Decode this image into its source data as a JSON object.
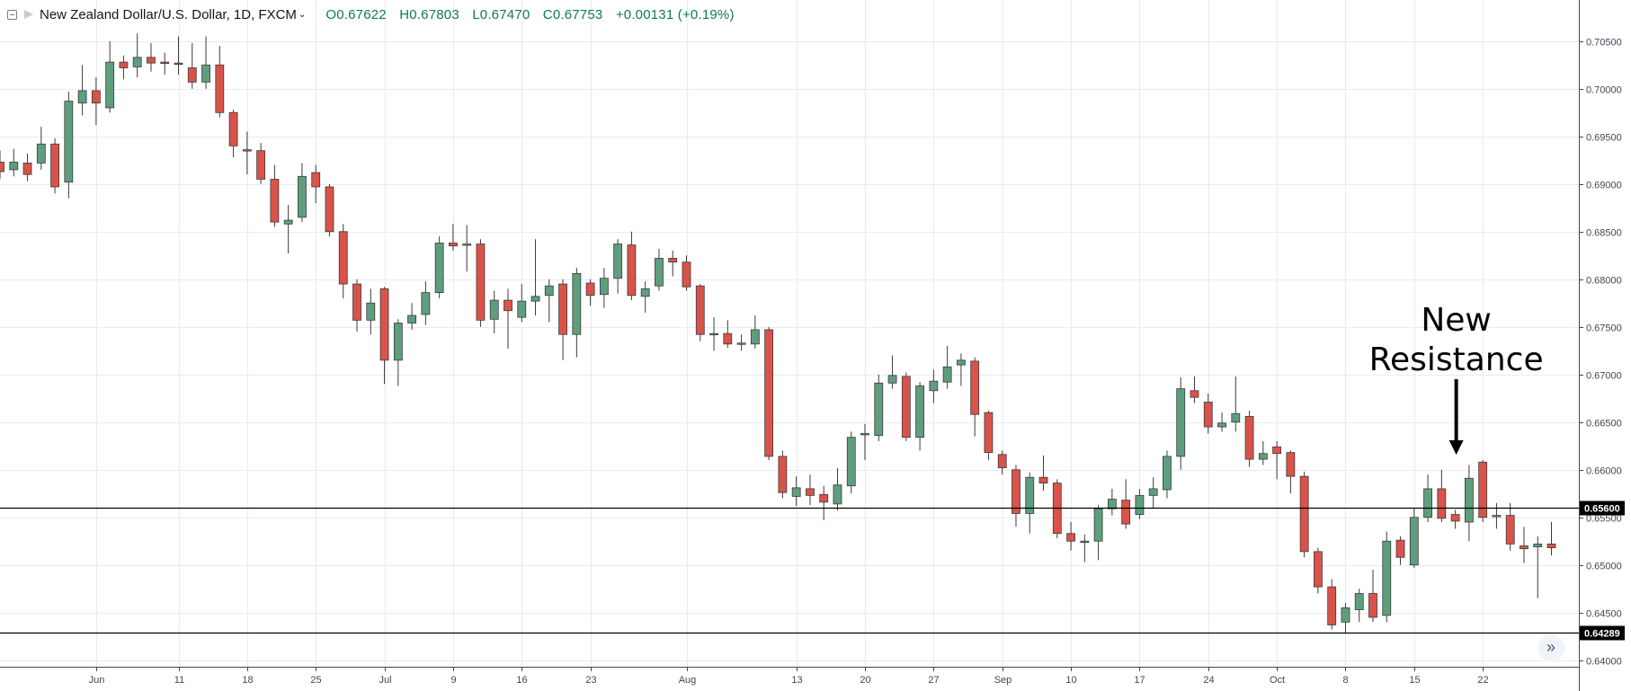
{
  "header": {
    "title": "New Zealand Dollar/U.S. Dollar, 1D, FXCM",
    "open": "O0.67622",
    "high": "H0.67803",
    "low": "L0.67470",
    "close": "C0.67753",
    "change": "+0.00131 (+0.19%)"
  },
  "colors": {
    "up": "#5e9e7e",
    "down": "#d9534a",
    "ohlc": "#0f7b49",
    "line": "#000000"
  },
  "annotation": {
    "line1": "New",
    "line2": "Resistance"
  },
  "scroll_icon": "double-chevron-right-icon",
  "chart_data": {
    "type": "candlestick",
    "ylim": [
      0.6395,
      0.708
    ],
    "y_ticks": [
      "0.70500",
      "0.70000",
      "0.69500",
      "0.69000",
      "0.68500",
      "0.68000",
      "0.67500",
      "0.67000",
      "0.66500",
      "0.66000",
      "0.65500",
      "0.65000",
      "0.64500",
      "0.64000"
    ],
    "x_ticks": [
      {
        "label": "Jun",
        "bar": 7
      },
      {
        "label": "11",
        "bar": 13
      },
      {
        "label": "18",
        "bar": 18
      },
      {
        "label": "25",
        "bar": 23
      },
      {
        "label": "Jul",
        "bar": 28
      },
      {
        "label": "9",
        "bar": 33
      },
      {
        "label": "16",
        "bar": 38
      },
      {
        "label": "23",
        "bar": 43
      },
      {
        "label": "Aug",
        "bar": 50
      },
      {
        "label": "13",
        "bar": 58
      },
      {
        "label": "20",
        "bar": 63
      },
      {
        "label": "27",
        "bar": 68
      },
      {
        "label": "Sep",
        "bar": 73
      },
      {
        "label": "10",
        "bar": 78
      },
      {
        "label": "17",
        "bar": 83
      },
      {
        "label": "24",
        "bar": 88
      },
      {
        "label": "Oct",
        "bar": 93
      },
      {
        "label": "8",
        "bar": 98
      },
      {
        "label": "15",
        "bar": 103
      },
      {
        "label": "22",
        "bar": 108
      }
    ],
    "levels": [
      {
        "value": 0.656,
        "label": "0.65600"
      },
      {
        "value": 0.64289,
        "label": "0.64289"
      }
    ],
    "annotation_bar": 106,
    "candles": [
      [
        0.6923,
        0.6913,
        0.6935,
        0.6905
      ],
      [
        0.6915,
        0.6923,
        0.6937,
        0.6908
      ],
      [
        0.6922,
        0.691,
        0.6932,
        0.6903
      ],
      [
        0.6922,
        0.6942,
        0.696,
        0.6915
      ],
      [
        0.6942,
        0.6897,
        0.6948,
        0.689
      ],
      [
        0.6902,
        0.6987,
        0.6997,
        0.6885
      ],
      [
        0.6985,
        0.6998,
        0.7025,
        0.6972
      ],
      [
        0.6998,
        0.6985,
        0.7012,
        0.6962
      ],
      [
        0.698,
        0.7028,
        0.705,
        0.6975
      ],
      [
        0.7028,
        0.7022,
        0.7035,
        0.701
      ],
      [
        0.7023,
        0.7033,
        0.7058,
        0.7012
      ],
      [
        0.7033,
        0.7027,
        0.7048,
        0.7018
      ],
      [
        0.7028,
        0.7027,
        0.7038,
        0.7015
      ],
      [
        0.7027,
        0.7026,
        0.7055,
        0.7015
      ],
      [
        0.7022,
        0.7007,
        0.7048,
        0.7
      ],
      [
        0.7007,
        0.7025,
        0.7055,
        0.7
      ],
      [
        0.7025,
        0.6975,
        0.7045,
        0.697
      ],
      [
        0.6975,
        0.694,
        0.6978,
        0.6928
      ],
      [
        0.6936,
        0.6935,
        0.6955,
        0.691
      ],
      [
        0.6935,
        0.6905,
        0.6943,
        0.69
      ],
      [
        0.6905,
        0.686,
        0.692,
        0.6855
      ],
      [
        0.6858,
        0.6862,
        0.6878,
        0.6827
      ],
      [
        0.6865,
        0.6908,
        0.6922,
        0.686
      ],
      [
        0.6912,
        0.6897,
        0.692,
        0.688
      ],
      [
        0.6897,
        0.685,
        0.69,
        0.6845
      ],
      [
        0.685,
        0.6795,
        0.6858,
        0.678
      ],
      [
        0.6795,
        0.6757,
        0.68,
        0.6745
      ],
      [
        0.6757,
        0.6775,
        0.679,
        0.6742
      ],
      [
        0.679,
        0.6715,
        0.6792,
        0.669
      ],
      [
        0.6715,
        0.6754,
        0.6758,
        0.6688
      ],
      [
        0.6754,
        0.6762,
        0.6775,
        0.6747
      ],
      [
        0.6763,
        0.6786,
        0.6798,
        0.6752
      ],
      [
        0.6786,
        0.6838,
        0.6845,
        0.678
      ],
      [
        0.6838,
        0.6835,
        0.6858,
        0.683
      ],
      [
        0.6836,
        0.6837,
        0.6857,
        0.6808
      ],
      [
        0.6837,
        0.6757,
        0.6842,
        0.675
      ],
      [
        0.6758,
        0.6778,
        0.6788,
        0.6743
      ],
      [
        0.6778,
        0.6767,
        0.679,
        0.6727
      ],
      [
        0.676,
        0.6777,
        0.6795,
        0.6755
      ],
      [
        0.6777,
        0.6782,
        0.6842,
        0.6762
      ],
      [
        0.6783,
        0.6793,
        0.68,
        0.6755
      ],
      [
        0.6795,
        0.6742,
        0.68,
        0.6715
      ],
      [
        0.6742,
        0.6806,
        0.6812,
        0.6718
      ],
      [
        0.6796,
        0.6783,
        0.68,
        0.6772
      ],
      [
        0.6784,
        0.6801,
        0.6812,
        0.677
      ],
      [
        0.6801,
        0.6837,
        0.6842,
        0.6785
      ],
      [
        0.6836,
        0.6783,
        0.685,
        0.6778
      ],
      [
        0.6782,
        0.679,
        0.6798,
        0.6765
      ],
      [
        0.6793,
        0.6822,
        0.6832,
        0.6788
      ],
      [
        0.6822,
        0.6818,
        0.683,
        0.6803
      ],
      [
        0.6818,
        0.6792,
        0.6825,
        0.6788
      ],
      [
        0.6793,
        0.6742,
        0.6795,
        0.6735
      ],
      [
        0.6742,
        0.6743,
        0.676,
        0.6725
      ],
      [
        0.6743,
        0.6732,
        0.6757,
        0.6728
      ],
      [
        0.6733,
        0.6733,
        0.6742,
        0.6725
      ],
      [
        0.6732,
        0.6747,
        0.6762,
        0.6727
      ],
      [
        0.6747,
        0.6614,
        0.675,
        0.661
      ],
      [
        0.6614,
        0.6576,
        0.662,
        0.657
      ],
      [
        0.6572,
        0.6581,
        0.6593,
        0.6562
      ],
      [
        0.658,
        0.6573,
        0.6595,
        0.6563
      ],
      [
        0.6574,
        0.6566,
        0.6583,
        0.6547
      ],
      [
        0.6564,
        0.6584,
        0.6602,
        0.6557
      ],
      [
        0.6583,
        0.6634,
        0.664,
        0.6575
      ],
      [
        0.6638,
        0.6638,
        0.6648,
        0.661
      ],
      [
        0.6636,
        0.6691,
        0.67,
        0.663
      ],
      [
        0.6691,
        0.6699,
        0.672,
        0.6685
      ],
      [
        0.6698,
        0.6634,
        0.6702,
        0.663
      ],
      [
        0.6634,
        0.6688,
        0.6692,
        0.662
      ],
      [
        0.6683,
        0.6693,
        0.6705,
        0.667
      ],
      [
        0.6692,
        0.6708,
        0.673,
        0.6685
      ],
      [
        0.671,
        0.6715,
        0.6722,
        0.6688
      ],
      [
        0.6714,
        0.6658,
        0.6718,
        0.6635
      ],
      [
        0.666,
        0.6618,
        0.6662,
        0.661
      ],
      [
        0.6616,
        0.6602,
        0.662,
        0.6595
      ],
      [
        0.66,
        0.6554,
        0.6605,
        0.654
      ],
      [
        0.6554,
        0.6592,
        0.6597,
        0.6533
      ],
      [
        0.6592,
        0.6586,
        0.6615,
        0.6578
      ],
      [
        0.6586,
        0.6533,
        0.659,
        0.6528
      ],
      [
        0.6533,
        0.6525,
        0.6545,
        0.6515
      ],
      [
        0.6525,
        0.6525,
        0.6532,
        0.6503
      ],
      [
        0.6525,
        0.6559,
        0.6563,
        0.6505
      ],
      [
        0.6559,
        0.6569,
        0.658,
        0.6552
      ],
      [
        0.6568,
        0.6543,
        0.659,
        0.6538
      ],
      [
        0.6553,
        0.6573,
        0.658,
        0.6548
      ],
      [
        0.6573,
        0.658,
        0.6592,
        0.656
      ],
      [
        0.6579,
        0.6614,
        0.662,
        0.657
      ],
      [
        0.6614,
        0.6685,
        0.6697,
        0.66
      ],
      [
        0.6683,
        0.6676,
        0.6698,
        0.667
      ],
      [
        0.6671,
        0.6645,
        0.668,
        0.6638
      ],
      [
        0.6645,
        0.6649,
        0.666,
        0.664
      ],
      [
        0.665,
        0.6659,
        0.6698,
        0.664
      ],
      [
        0.6656,
        0.6611,
        0.6662,
        0.6603
      ],
      [
        0.6611,
        0.6617,
        0.663,
        0.6605
      ],
      [
        0.6624,
        0.6617,
        0.663,
        0.659
      ],
      [
        0.6618,
        0.6593,
        0.662,
        0.6575
      ],
      [
        0.6593,
        0.6514,
        0.6598,
        0.6508
      ],
      [
        0.6514,
        0.6477,
        0.6518,
        0.647
      ],
      [
        0.6477,
        0.6437,
        0.6485,
        0.6432
      ],
      [
        0.644,
        0.6455,
        0.646,
        0.6428
      ],
      [
        0.6453,
        0.647,
        0.6475,
        0.644
      ],
      [
        0.647,
        0.6445,
        0.6495,
        0.644
      ],
      [
        0.6447,
        0.6525,
        0.6535,
        0.644
      ],
      [
        0.6526,
        0.6508,
        0.653,
        0.65
      ],
      [
        0.65,
        0.655,
        0.656,
        0.6497
      ],
      [
        0.655,
        0.658,
        0.6595,
        0.6545
      ],
      [
        0.658,
        0.6549,
        0.66,
        0.6545
      ],
      [
        0.6553,
        0.6546,
        0.6558,
        0.6538
      ],
      [
        0.6545,
        0.6591,
        0.6605,
        0.6525
      ],
      [
        0.6608,
        0.655,
        0.661,
        0.6545
      ],
      [
        0.6552,
        0.6552,
        0.6565,
        0.6538
      ],
      [
        0.6552,
        0.6522,
        0.6565,
        0.6515
      ],
      [
        0.652,
        0.6517,
        0.654,
        0.6502
      ],
      [
        0.6519,
        0.6522,
        0.653,
        0.6465
      ],
      [
        0.6522,
        0.6518,
        0.6545,
        0.651
      ]
    ]
  }
}
